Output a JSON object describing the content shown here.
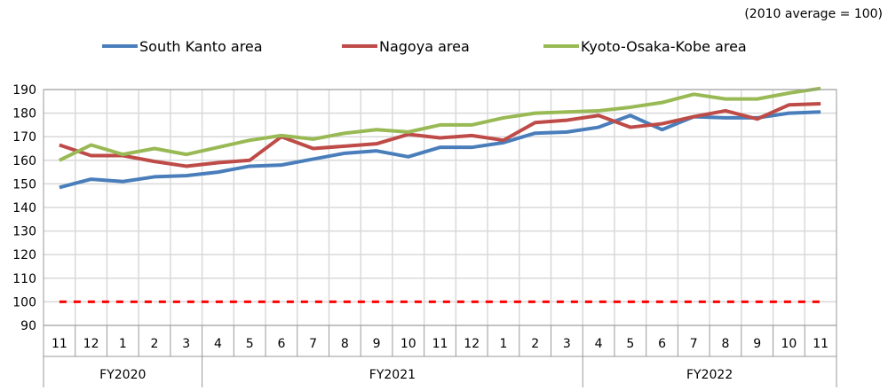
{
  "chart_data": {
    "type": "line",
    "note": "(2010 average = 100)",
    "xlabel": "",
    "ylabel": "",
    "ylim": [
      90,
      190
    ],
    "yticks": [
      90,
      100,
      110,
      120,
      130,
      140,
      150,
      160,
      170,
      180,
      190
    ],
    "grid": true,
    "legend_position": "top",
    "categories": [
      "11",
      "12",
      "1",
      "2",
      "3",
      "4",
      "5",
      "6",
      "7",
      "8",
      "9",
      "10",
      "11",
      "12",
      "1",
      "2",
      "3",
      "4",
      "5",
      "6",
      "7",
      "8",
      "9",
      "10",
      "11"
    ],
    "groups": [
      {
        "label": "FY2020",
        "count": 5
      },
      {
        "label": "FY2021",
        "count": 12
      },
      {
        "label": "FY2022",
        "count": 8
      }
    ],
    "series": [
      {
        "name": "South Kanto area",
        "color": "#4a7ebb",
        "values": [
          148.5,
          152,
          151,
          153,
          153.5,
          155,
          157.5,
          158,
          160.5,
          163,
          164,
          161.5,
          165.5,
          165.5,
          167.5,
          171.5,
          172,
          174,
          179,
          173,
          178.5,
          178,
          178,
          180,
          180.5
        ]
      },
      {
        "name": "Nagoya area",
        "color": "#be4b48",
        "values": [
          166.5,
          162,
          162,
          159.5,
          157.5,
          159,
          160,
          170,
          165,
          166,
          167,
          171,
          169.5,
          170.5,
          168.5,
          176,
          177,
          179,
          174,
          175.5,
          178.5,
          181,
          177.5,
          183.5,
          184
        ]
      },
      {
        "name": "Kyoto-Osaka-Kobe area",
        "color": "#98b954",
        "values": [
          160,
          166.5,
          162.5,
          165,
          162.5,
          165.5,
          168.5,
          170.5,
          169,
          171.5,
          173,
          172,
          175,
          175,
          178,
          180,
          180.5,
          181,
          182.5,
          184.5,
          188,
          186,
          186,
          188.5,
          190.5
        ]
      }
    ],
    "reference_line": {
      "value": 100,
      "color": "#ff0000"
    }
  }
}
